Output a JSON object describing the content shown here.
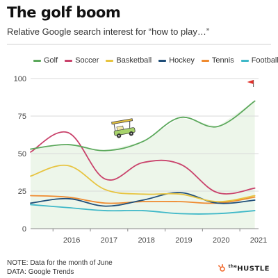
{
  "header": {
    "title": "The golf boom",
    "subtitle": "Relative Google search interest for “how to play…”"
  },
  "footer": {
    "note": "NOTE: Data for the month of June",
    "source": "DATA: Google Trends",
    "brand_the": "the",
    "brand_name": "HUSTLE"
  },
  "colors": {
    "Golf": "#5ba85b",
    "Soccer": "#c9426b",
    "Basketball": "#e7c440",
    "Hockey": "#1f4e79",
    "Tennis": "#ef8a2f",
    "Football": "#3fb8c8",
    "brand_accent": "#f26a2e",
    "flag": "#e0302a"
  },
  "chart_data": {
    "type": "line",
    "x": [
      2015.4,
      2016.4,
      2017.4,
      2018.4,
      2019.4,
      2020.4,
      2021.4
    ],
    "xticks": [
      "2016",
      "2017",
      "2018",
      "2019",
      "2020",
      "2021"
    ],
    "yticks": [
      "0",
      "25",
      "50",
      "75",
      "100"
    ],
    "ylim": [
      0,
      100
    ],
    "xlim": [
      2015.4,
      2021.5
    ],
    "grid": true,
    "legend": "top",
    "series": [
      {
        "name": "Golf",
        "values": [
          53,
          56,
          52,
          58,
          74,
          68,
          85
        ]
      },
      {
        "name": "Soccer",
        "values": [
          51,
          64,
          33,
          44,
          43,
          24,
          27
        ]
      },
      {
        "name": "Basketball",
        "values": [
          35,
          42,
          26,
          23,
          23,
          18,
          22
        ]
      },
      {
        "name": "Hockey",
        "values": [
          17,
          20,
          15,
          19,
          24,
          17,
          19
        ]
      },
      {
        "name": "Tennis",
        "values": [
          22,
          21,
          17,
          18,
          18,
          17,
          21
        ]
      },
      {
        "name": "Football",
        "values": [
          16,
          14,
          12,
          12,
          10,
          10,
          12
        ]
      }
    ],
    "annotations": [
      "golf-cart",
      "golf-flag"
    ]
  }
}
